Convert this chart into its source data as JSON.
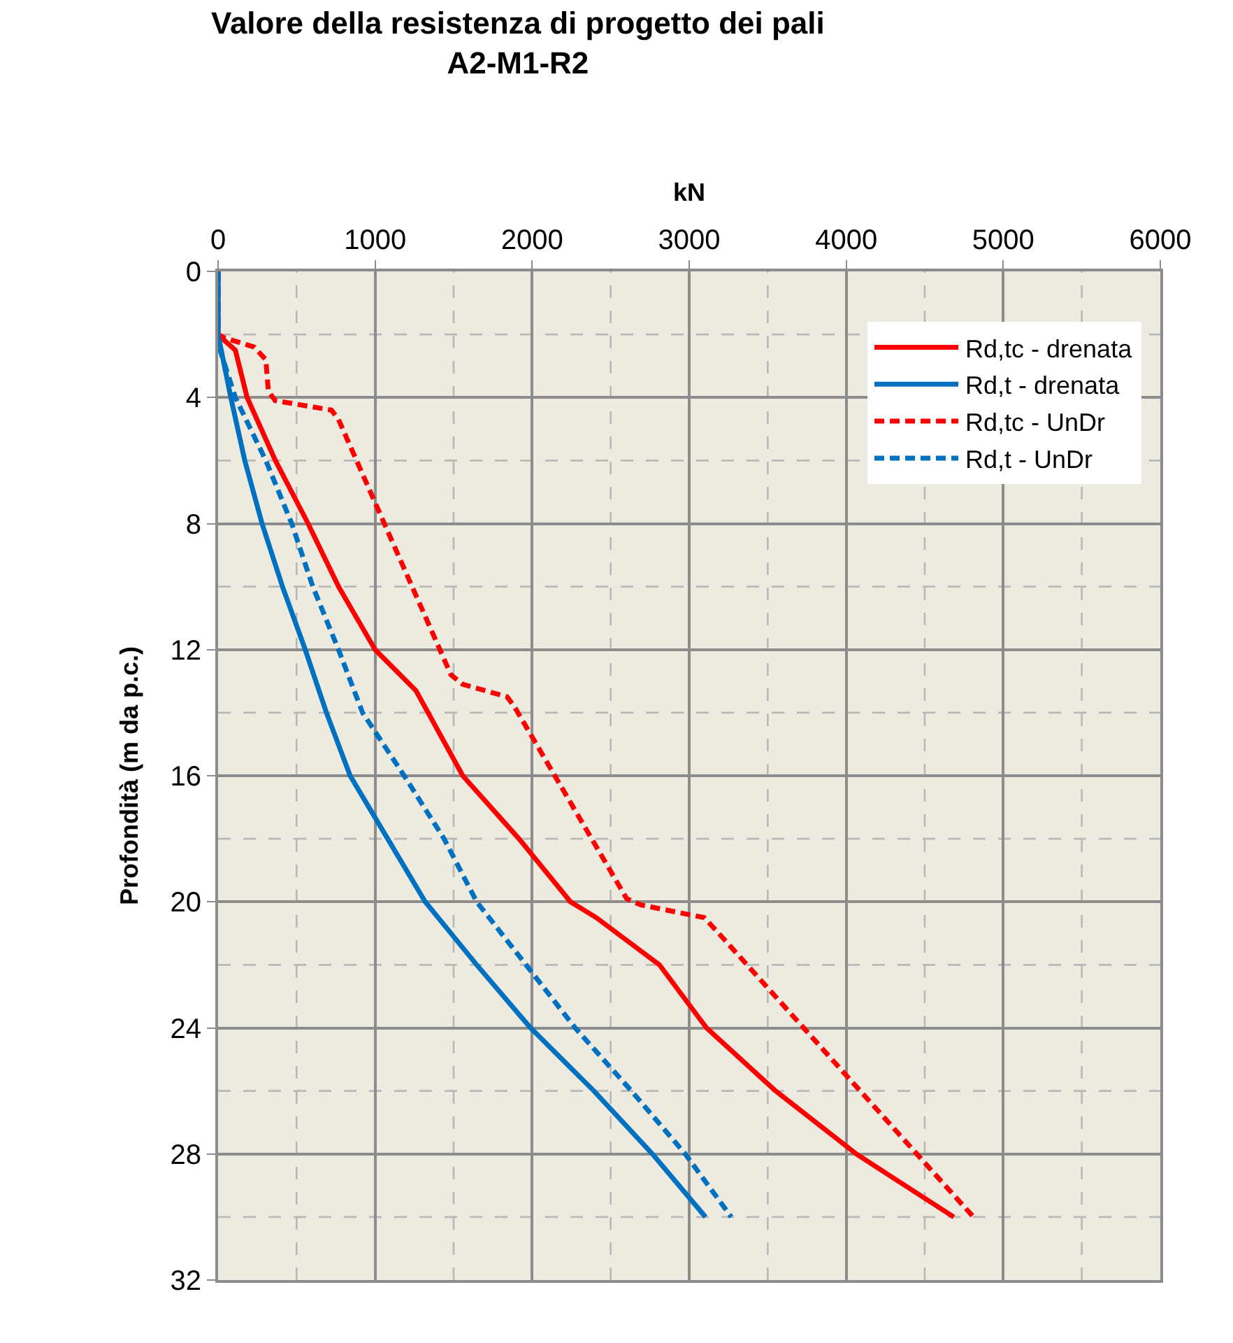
{
  "chart_data": {
    "type": "line",
    "title": "Valore della resistenza di progetto dei pali\nA2-M1-R2",
    "xlabel": "kN",
    "ylabel": "Profondità (m da p.c.)",
    "xlim": [
      0,
      6000
    ],
    "xticks": [
      0,
      {
        "value": 500,
        "label": null
      },
      1000,
      {
        "value": 1500,
        "label": null
      },
      2000,
      {
        "value": 2500,
        "label": null
      },
      3000,
      {
        "value": 3500,
        "label": null
      },
      4000,
      {
        "value": 4500,
        "label": null
      },
      5000,
      {
        "value": 5500,
        "label": null
      },
      6000
    ],
    "ylim": [
      32,
      0
    ],
    "yticks": [
      0,
      {
        "value": 2,
        "label": null
      },
      4,
      {
        "value": 6,
        "label": null
      },
      8,
      {
        "value": 10,
        "label": null
      },
      12,
      {
        "value": 14,
        "label": null
      },
      16,
      {
        "value": 18,
        "label": null
      },
      20,
      {
        "value": 22,
        "label": null
      },
      24,
      {
        "value": 26,
        "label": null
      },
      28,
      {
        "value": 30,
        "label": null
      },
      32
    ],
    "grid": true,
    "legend": "top right",
    "marker": "none",
    "series": [
      {
        "name": "Rd,tc - drenata",
        "color": "#ff0000",
        "line_style": "solid",
        "x": [
          0,
          0,
          20,
          110,
          185,
          365,
          573,
          767,
          1000,
          1260,
          1558,
          1916,
          2244,
          2408,
          2811,
          3110,
          3550,
          4064,
          4685
        ],
        "values": [
          0,
          2,
          2.1,
          2.5,
          4,
          6,
          8,
          10,
          12,
          13.3,
          16,
          18,
          20,
          20.5,
          22,
          24,
          26,
          28,
          30
        ]
      },
      {
        "name": "Rd,t - drenata",
        "color": "#0070c0",
        "line_style": "solid",
        "x": [
          0,
          0,
          81,
          170,
          280,
          410,
          555,
          690,
          841,
          1080,
          1319,
          1647,
          1990,
          2393,
          2766,
          3104
        ],
        "values": [
          0,
          2,
          4,
          6,
          8,
          10,
          12,
          14,
          16,
          18,
          20,
          22,
          24,
          26,
          28,
          30
        ]
      },
      {
        "name": "Rd,tc - UnDr",
        "color": "#ff0000",
        "line_style": "dashed",
        "x": [
          0,
          0,
          36,
          230,
          304,
          320,
          364,
          722,
          767,
          1483,
          1558,
          1841,
          1886,
          2602,
          2692,
          3095,
          3170,
          4810
        ],
        "values": [
          0,
          2,
          2.1,
          2.4,
          2.8,
          3.8,
          4.1,
          4.4,
          4.7,
          12.8,
          13.1,
          13.5,
          13.8,
          19.9,
          20.1,
          20.5,
          20.9,
          30
        ]
      },
      {
        "name": "Rd,t - UnDr",
        "color": "#0070c0",
        "line_style": "dashed",
        "x": [
          0,
          0,
          110,
          304,
          469,
          603,
          767,
          920,
          1185,
          1439,
          1647,
          1961,
          2274,
          2632,
          2975,
          3268
        ],
        "values": [
          0,
          2.3,
          4,
          6,
          8,
          10,
          12,
          14,
          16,
          18,
          20,
          22,
          24,
          26,
          28,
          30
        ]
      }
    ]
  }
}
